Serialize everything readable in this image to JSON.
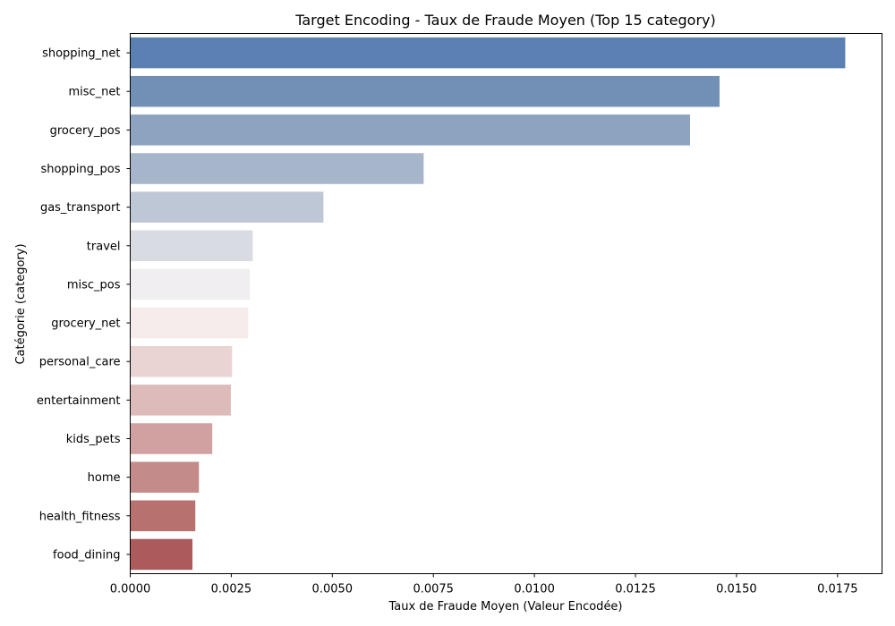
{
  "chart_data": {
    "type": "bar",
    "orientation": "horizontal",
    "title": "Target Encoding - Taux de Fraude Moyen (Top 15 category)",
    "xlabel": "Taux de Fraude Moyen (Valeur Encodée)",
    "ylabel": "Catégorie (category)",
    "xlim": [
      0,
      0.0186
    ],
    "xticks": [
      "0.0000",
      "0.0025",
      "0.0050",
      "0.0075",
      "0.0100",
      "0.0125",
      "0.0150",
      "0.0175"
    ],
    "categories": [
      "shopping_net",
      "misc_net",
      "grocery_pos",
      "shopping_pos",
      "gas_transport",
      "travel",
      "misc_pos",
      "grocery_net",
      "personal_care",
      "entertainment",
      "kids_pets",
      "home",
      "health_fitness",
      "food_dining"
    ],
    "values": [
      0.01769,
      0.01458,
      0.01385,
      0.00726,
      0.00478,
      0.00303,
      0.00296,
      0.00292,
      0.00252,
      0.00249,
      0.00203,
      0.0017,
      0.00161,
      0.00154
    ],
    "colors": [
      "#5b80b2",
      "#7290b6",
      "#8ea3bf",
      "#a6b5ca",
      "#bec7d5",
      "#d8dbe2",
      "#f0eef1",
      "#f6eceb",
      "#e9d3d3",
      "#debbbb",
      "#d1a1a1",
      "#c38b8a",
      "#b7716f",
      "#ab5b5b"
    ],
    "grid": false,
    "legend": "none"
  }
}
